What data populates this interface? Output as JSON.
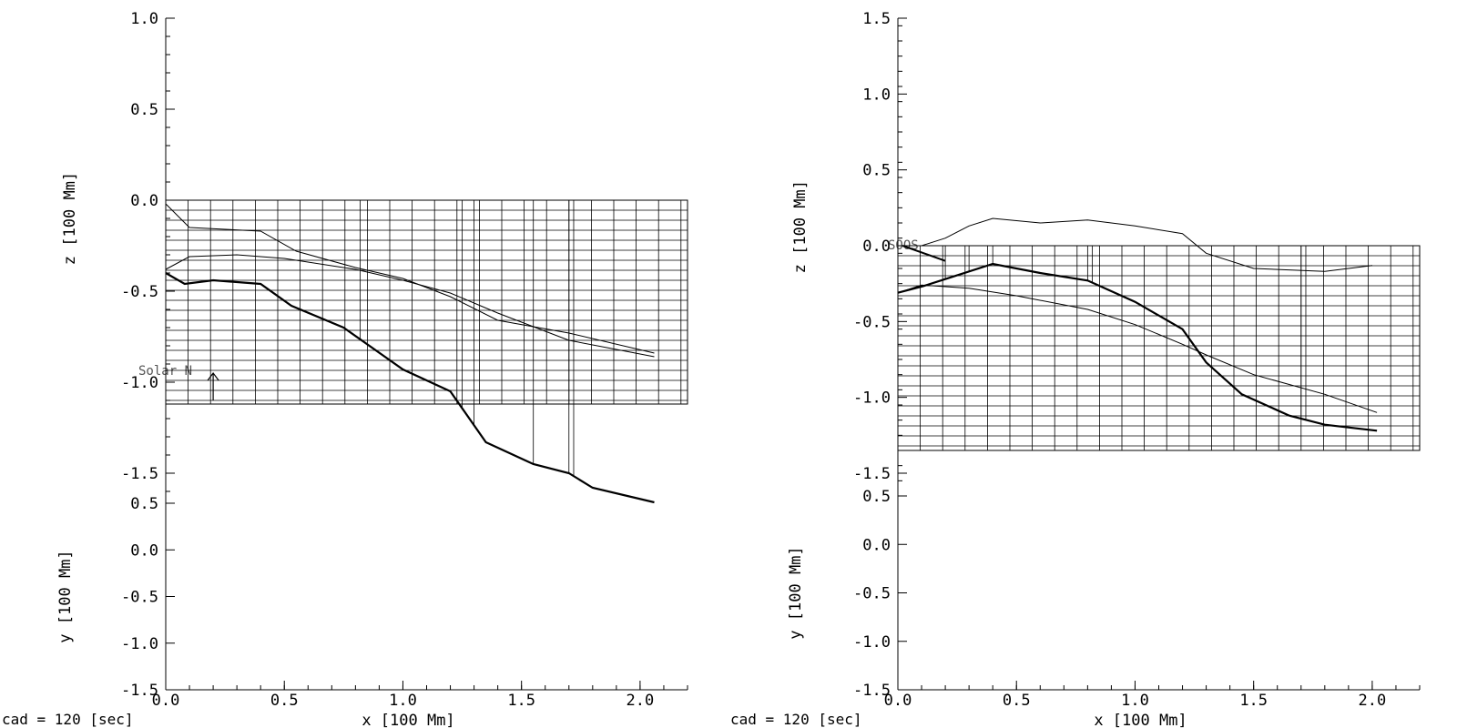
{
  "chart_data": [
    {
      "type": "line",
      "panel": "left",
      "footer": "cad =  120 [sec]",
      "xlabel": "x [100 Mm]",
      "zlabel": "z [100 Mm]",
      "ylabel": "y [100 Mm]",
      "xlim": [
        0.0,
        2.2
      ],
      "zlim": [
        -1.6,
        1.0
      ],
      "ylim": [
        -1.5,
        0.5
      ],
      "x_ticks": [
        "0.0",
        "0.5",
        "1.0",
        "1.5",
        "2.0"
      ],
      "z_ticks": [
        "1.0",
        "0.5",
        "0.0",
        "-0.5",
        "-1.0",
        "-1.5"
      ],
      "y_ticks": [
        "0.5",
        "0.0",
        "-0.5",
        "-1.0",
        "-1.5"
      ],
      "annotation": "Solar N",
      "mesh": {
        "x": [
          0.0,
          2.2
        ],
        "z": [
          -1.12,
          0.0
        ]
      },
      "series": [
        {
          "style": "thick",
          "x": [
            0.0,
            0.08,
            0.2,
            0.4,
            0.53,
            0.75,
            1.0,
            1.2,
            1.35,
            1.55,
            1.7,
            1.8,
            2.06
          ],
          "z": [
            -0.4,
            -0.46,
            -0.44,
            -0.46,
            -0.58,
            -0.7,
            -0.93,
            -1.05,
            -1.33,
            -1.45,
            -1.5,
            -1.58,
            -1.66
          ]
        },
        {
          "style": "thin",
          "x": [
            0.0,
            0.1,
            0.4,
            0.55,
            0.8,
            1.0,
            1.2,
            1.4,
            1.7,
            2.06
          ],
          "z": [
            -0.02,
            -0.15,
            -0.17,
            -0.28,
            -0.37,
            -0.43,
            -0.53,
            -0.66,
            -0.73,
            -0.84
          ]
        },
        {
          "style": "thin",
          "x": [
            0.0,
            0.1,
            0.3,
            0.5,
            0.8,
            1.0,
            1.2,
            1.4,
            1.7,
            2.06
          ],
          "z": [
            -0.38,
            -0.31,
            -0.3,
            -0.32,
            -0.38,
            -0.44,
            -0.51,
            -0.62,
            -0.77,
            -0.86
          ]
        }
      ]
    },
    {
      "type": "line",
      "panel": "right",
      "footer": "cad =  120 [sec]",
      "xlabel": "x [100 Mm]",
      "zlabel": "z [100 Mm]",
      "ylabel": "y [100 Mm]",
      "xlim": [
        0.0,
        2.2
      ],
      "zlim": [
        -1.65,
        1.5
      ],
      "ylim": [
        -1.5,
        0.5
      ],
      "x_ticks": [
        "0.0",
        "0.5",
        "1.0",
        "1.5",
        "2.0"
      ],
      "z_ticks": [
        "1.5",
        "1.0",
        "0.5",
        "0.0",
        "-0.5",
        "-1.0",
        "-1.5"
      ],
      "y_ticks": [
        "0.5",
        "0.0",
        "-0.5",
        "-1.0",
        "-1.5"
      ],
      "annotation": "SOOS",
      "mesh": {
        "x": [
          0.0,
          2.2
        ],
        "z": [
          -1.35,
          0.0
        ]
      },
      "series": [
        {
          "style": "thin",
          "x": [
            0.0,
            0.1,
            0.2,
            0.3,
            0.4,
            0.6,
            0.8,
            1.0,
            1.2,
            1.3,
            1.5,
            1.8,
            2.0
          ],
          "z": [
            0.0,
            0.0,
            0.05,
            0.13,
            0.18,
            0.15,
            0.17,
            0.13,
            0.08,
            -0.05,
            -0.15,
            -0.17,
            -0.13
          ]
        },
        {
          "style": "thick",
          "x": [
            0.0,
            0.1,
            0.2,
            0.4,
            0.6,
            0.8,
            1.0,
            1.2,
            1.3,
            1.45,
            1.65,
            1.8,
            2.02
          ],
          "z": [
            -0.31,
            -0.27,
            -0.22,
            -0.12,
            -0.18,
            -0.23,
            -0.37,
            -0.55,
            -0.77,
            -0.98,
            -1.12,
            -1.18,
            -1.22
          ]
        },
        {
          "style": "thin",
          "x": [
            0.0,
            0.1,
            0.3,
            0.5,
            0.8,
            1.0,
            1.2,
            1.3,
            1.5,
            1.8,
            2.02
          ],
          "z": [
            -0.31,
            -0.26,
            -0.28,
            -0.33,
            -0.42,
            -0.52,
            -0.65,
            -0.72,
            -0.85,
            -0.98,
            -1.1
          ]
        }
      ]
    }
  ]
}
